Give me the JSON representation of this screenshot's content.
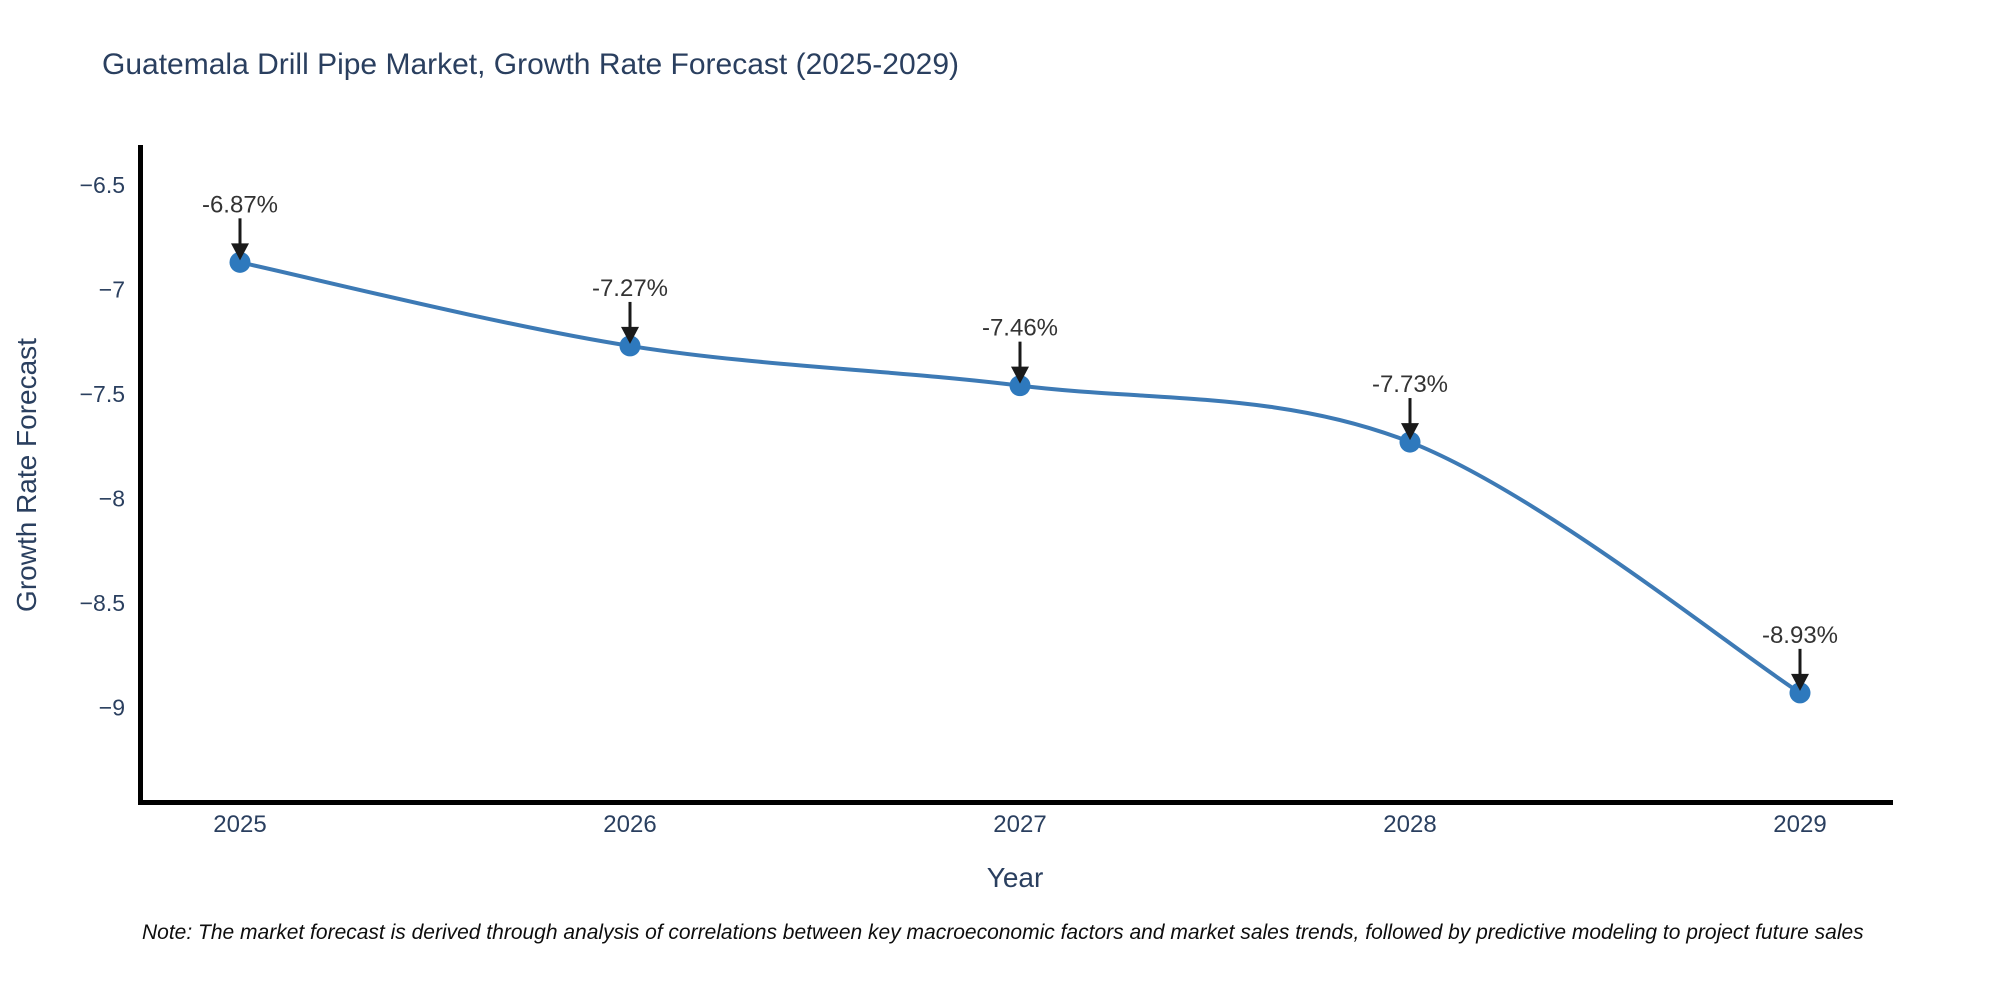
{
  "page": {
    "title": "Guatemala Drill Pipe Market, Growth Rate Forecast (2025-2029)",
    "note": "Note: The market forecast is derived through analysis of correlations between key macroeconomic factors and market sales trends, followed by predictive modeling to project future sales"
  },
  "chart_data": {
    "type": "line",
    "title": "Guatemala Drill Pipe Market, Growth Rate Forecast (2025-2029)",
    "xlabel": "Year",
    "ylabel": "Growth Rate Forecast",
    "x": [
      2025,
      2026,
      2027,
      2028,
      2029
    ],
    "series": [
      {
        "name": "Growth Rate Forecast",
        "values": [
          -6.87,
          -7.27,
          -7.46,
          -7.73,
          -8.93
        ]
      }
    ],
    "point_labels": [
      "-6.87%",
      "-7.27%",
      "-7.46%",
      "-7.73%",
      "-8.93%"
    ],
    "x_tick_labels": [
      "2025",
      "2026",
      "2027",
      "2028",
      "2029"
    ],
    "y_tick_labels": [
      "−6.5",
      "−7",
      "−7.5",
      "−8",
      "−8.5",
      "−9"
    ],
    "y_tick_values": [
      -6.5,
      -7,
      -7.5,
      -8,
      -8.5,
      -9
    ],
    "ylim": [
      -9.5,
      -6.3
    ],
    "grid": false,
    "legend": false,
    "line_shape": "spline",
    "colors": {
      "line": "#3d7ab5",
      "marker": "#2e79bd",
      "annotation_text": "#333333",
      "arrow": "#1a1a1a",
      "axis_line": "#000000",
      "tick_text": "#2a3f5f",
      "title_text": "#2a3f5f"
    }
  }
}
